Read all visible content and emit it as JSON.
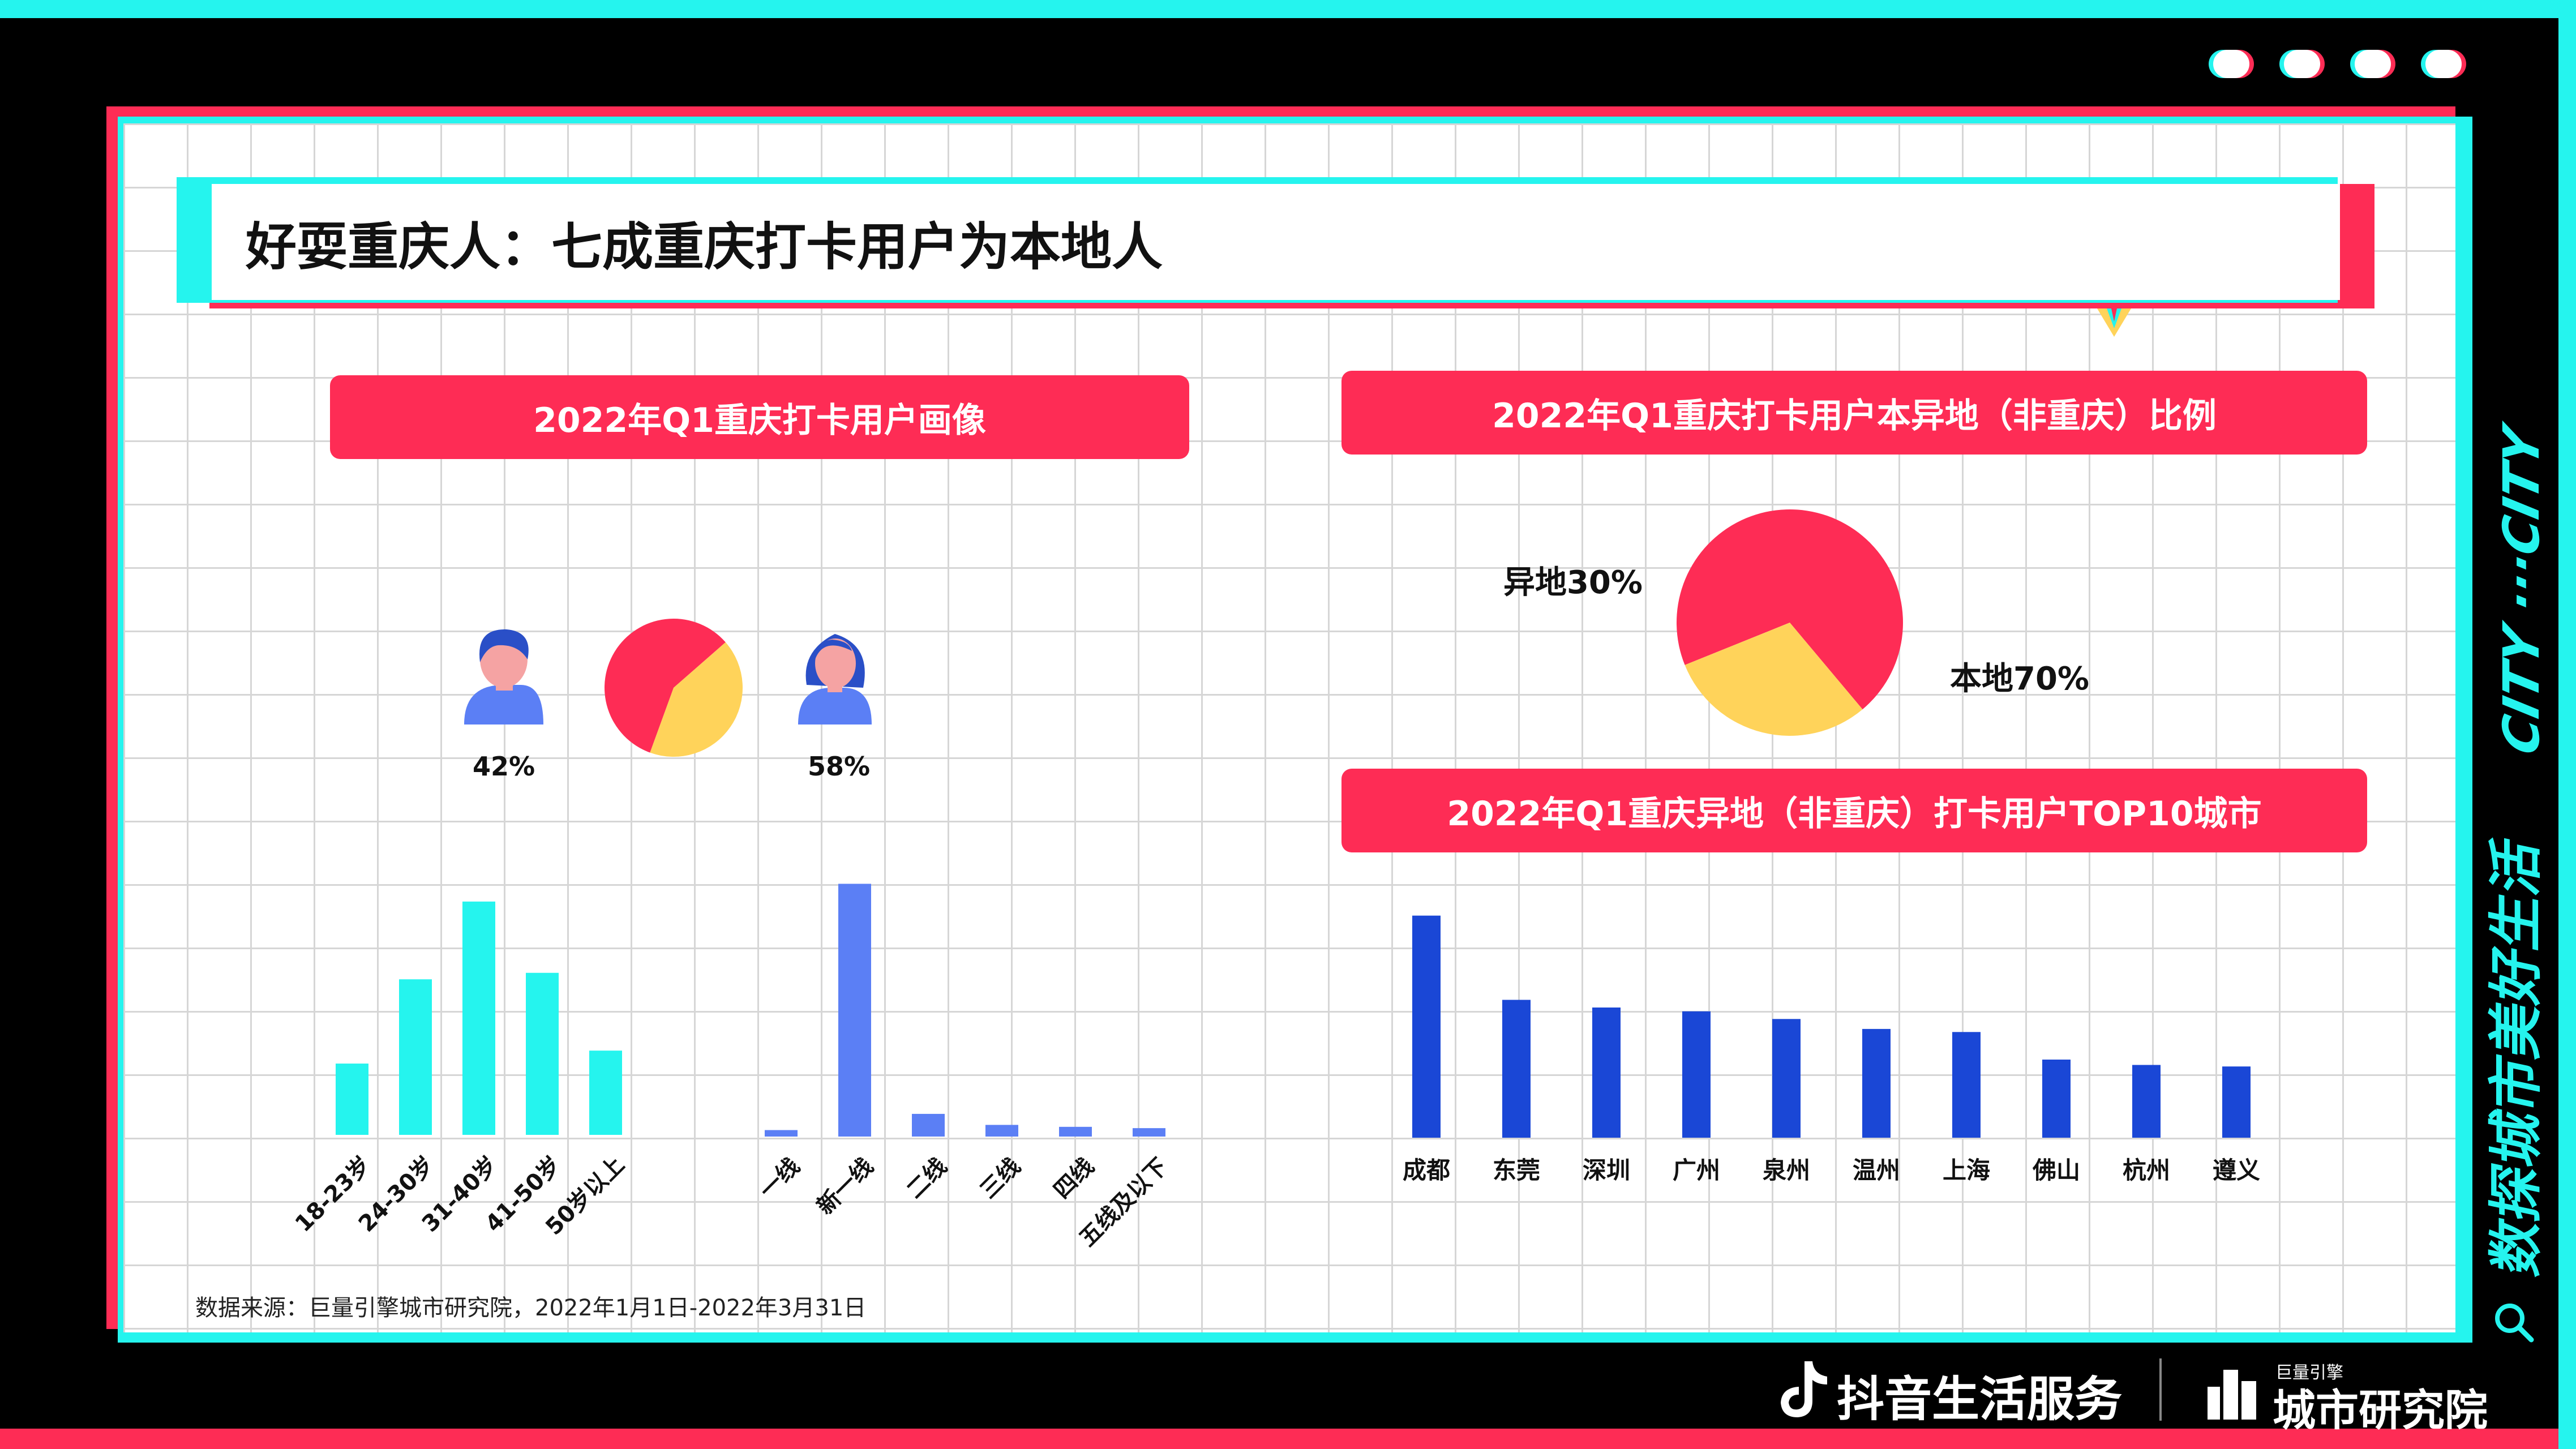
{
  "title": "好耍重庆人：七成重庆打卡用户为本地人",
  "side_slogan": "数探城市美好生活",
  "side_city": "CITY ···CITY",
  "source": "数据来源：巨量引擎城市研究院，2022年1月1日-2022年3月31日",
  "footer": {
    "brand1": "抖音生活服务",
    "brand2_small": "巨量引擎",
    "brand2": "城市研究院"
  },
  "colors": {
    "accent": "#fe2c55",
    "cyan": "#25f4ee",
    "gold": "#ffd35a",
    "periwinkle": "#5b7ff5",
    "blue": "#1a47d6"
  },
  "chart_data": [
    {
      "type": "pie",
      "title": "2022年Q1重庆打卡用户画像",
      "labels": [
        "42%",
        "58%"
      ],
      "values": [
        42,
        58
      ],
      "colors": [
        "#ffd35a",
        "#fe2c55"
      ],
      "icons": [
        "male-user-icon",
        "female-user-icon"
      ]
    },
    {
      "type": "bar",
      "categories": [
        "18-23岁",
        "24-30岁",
        "31-40岁",
        "41-50岁",
        "50岁以上"
      ],
      "values": [
        11,
        24,
        36,
        25,
        13
      ],
      "ylim": [
        0,
        40
      ],
      "color": "#25f4ee"
    },
    {
      "type": "bar",
      "categories": [
        "一线",
        "新一线",
        "二线",
        "三线",
        "四线",
        "五线及以下"
      ],
      "values": [
        1,
        39,
        3.5,
        1.8,
        1.5,
        1.3
      ],
      "ylim": [
        0,
        40
      ],
      "color": "#5b7ff5"
    },
    {
      "type": "pie",
      "title": "2022年Q1重庆打卡用户本异地（非重庆）比例",
      "labels": [
        "本地70%",
        "异地30%"
      ],
      "values": [
        70,
        30
      ],
      "colors": [
        "#fe2c55",
        "#ffd35a"
      ]
    },
    {
      "type": "bar",
      "title": "2022年Q1重庆异地（非重庆）打卡用户TOP10城市",
      "categories": [
        "成都",
        "东莞",
        "深圳",
        "广州",
        "泉州",
        "温州",
        "上海",
        "佛山",
        "杭州",
        "遵义"
      ],
      "values": [
        29,
        18,
        17,
        16.5,
        15.5,
        14.2,
        13.8,
        10.2,
        9.5,
        9.3
      ],
      "ylim": [
        0,
        34
      ],
      "color": "#1a47d6"
    }
  ]
}
